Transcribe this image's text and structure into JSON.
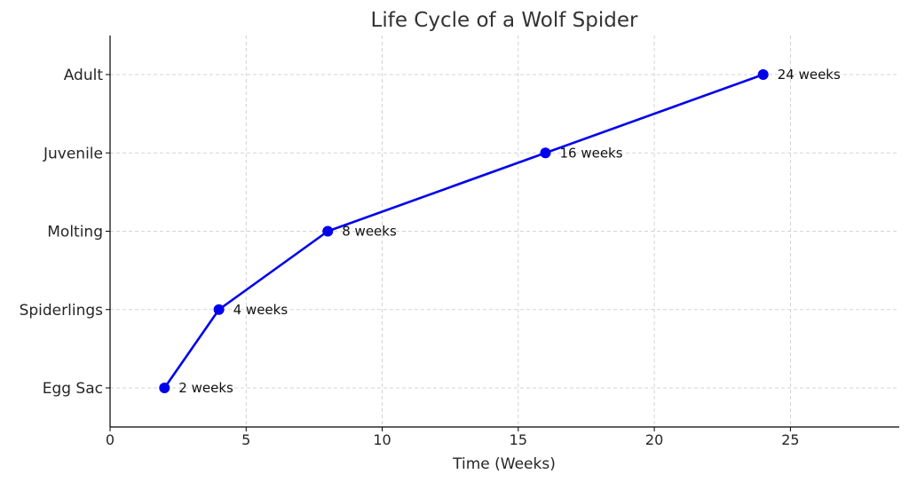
{
  "chart_data": {
    "type": "line",
    "title": "Life Cycle of a Wolf Spider",
    "xlabel": "Time (Weeks)",
    "ylabel": "",
    "xlim": [
      0,
      29
    ],
    "xticks": [
      0,
      5,
      10,
      15,
      20,
      25
    ],
    "categories": [
      "Egg Sac",
      "Spiderlings",
      "Molting",
      "Juvenile",
      "Adult"
    ],
    "grid": true,
    "series": [
      {
        "color": "#0000ee",
        "points": [
          {
            "x": 2,
            "y": "Egg Sac",
            "label": "2 weeks"
          },
          {
            "x": 4,
            "y": "Spiderlings",
            "label": "4 weeks"
          },
          {
            "x": 8,
            "y": "Molting",
            "label": "8 weeks"
          },
          {
            "x": 16,
            "y": "Juvenile",
            "label": "16 weeks"
          },
          {
            "x": 24,
            "y": "Adult",
            "label": "24 weeks"
          }
        ]
      }
    ]
  }
}
